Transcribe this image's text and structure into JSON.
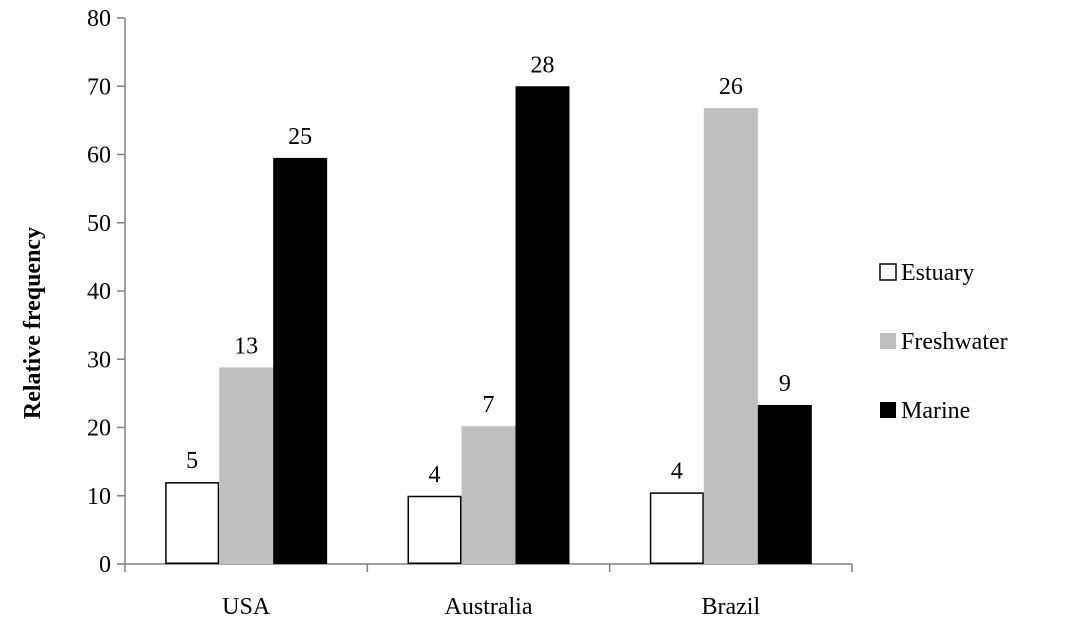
{
  "chart_data": {
    "type": "bar",
    "title": "",
    "xlabel": "",
    "ylabel": "Relative frequency",
    "ylim": [
      0,
      80
    ],
    "yticks": [
      0,
      10,
      20,
      30,
      40,
      50,
      60,
      70,
      80
    ],
    "grid": false,
    "legend_position": "right",
    "categories": [
      "USA",
      "Australia",
      "Brazil"
    ],
    "series": [
      {
        "name": "Estuary",
        "color": "#ffffff",
        "stroke": "#000000",
        "values": [
          12,
          10,
          10.5
        ],
        "labels": [
          "5",
          "4",
          "4"
        ]
      },
      {
        "name": "Freshwater",
        "color": "#bfbfbf",
        "stroke": "#bfbfbf",
        "values": [
          28.8,
          20.2,
          66.8
        ],
        "labels": [
          "13",
          "7",
          "26"
        ]
      },
      {
        "name": "Marine",
        "color": "#000000",
        "stroke": "#000000",
        "values": [
          59.5,
          70,
          23.3
        ],
        "labels": [
          "25",
          "28",
          "9"
        ]
      }
    ]
  }
}
